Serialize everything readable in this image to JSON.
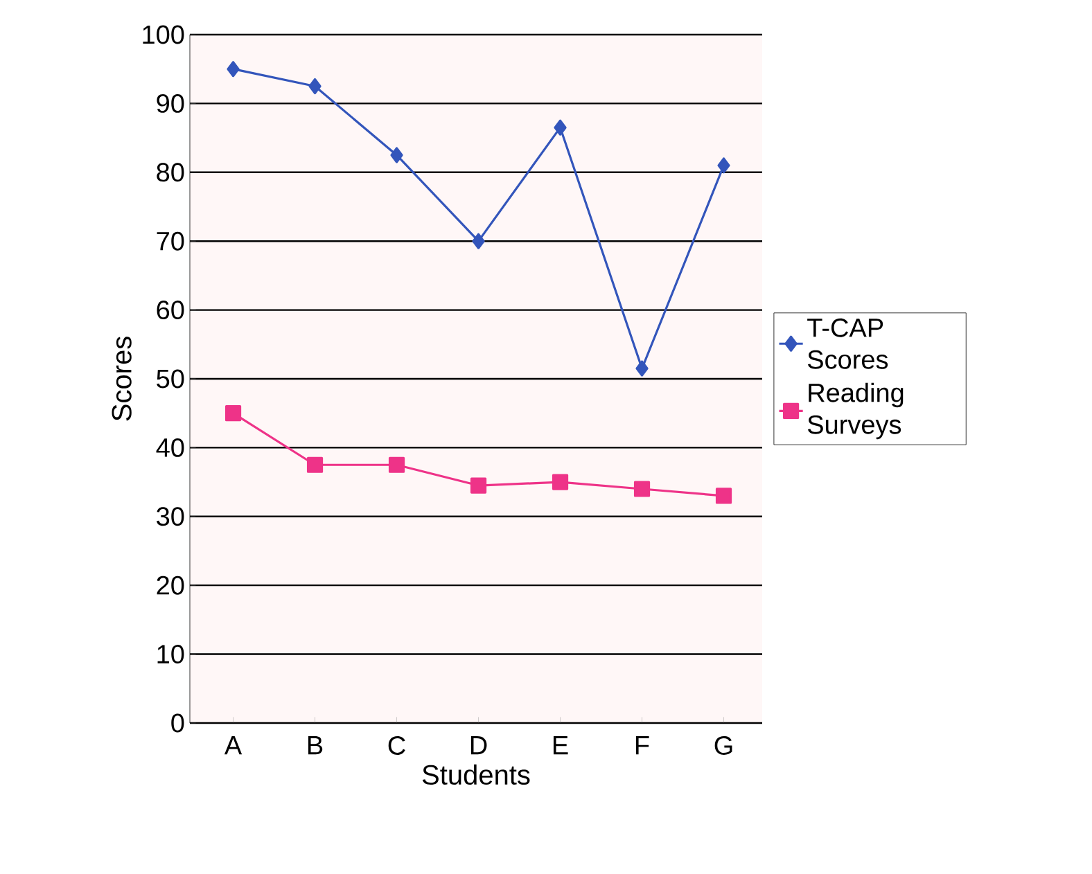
{
  "chart_data": {
    "type": "line",
    "xlabel": "Students",
    "ylabel": "Scores",
    "categories": [
      "A",
      "B",
      "C",
      "D",
      "E",
      "F",
      "G"
    ],
    "series": [
      {
        "name": "T-CAP Scores",
        "color": "#3355bb",
        "marker": "diamond",
        "values": [
          95,
          92.5,
          82.5,
          70,
          86.5,
          51.5,
          81
        ]
      },
      {
        "name": "Reading Surveys",
        "color": "#ee3388",
        "marker": "square",
        "values": [
          45,
          37.5,
          37.5,
          34.5,
          35,
          34,
          33
        ]
      }
    ],
    "ylim": [
      0,
      100
    ],
    "yticks": [
      0,
      10,
      20,
      30,
      40,
      50,
      60,
      70,
      80,
      90,
      100
    ],
    "grid": "y",
    "legend": "right"
  }
}
